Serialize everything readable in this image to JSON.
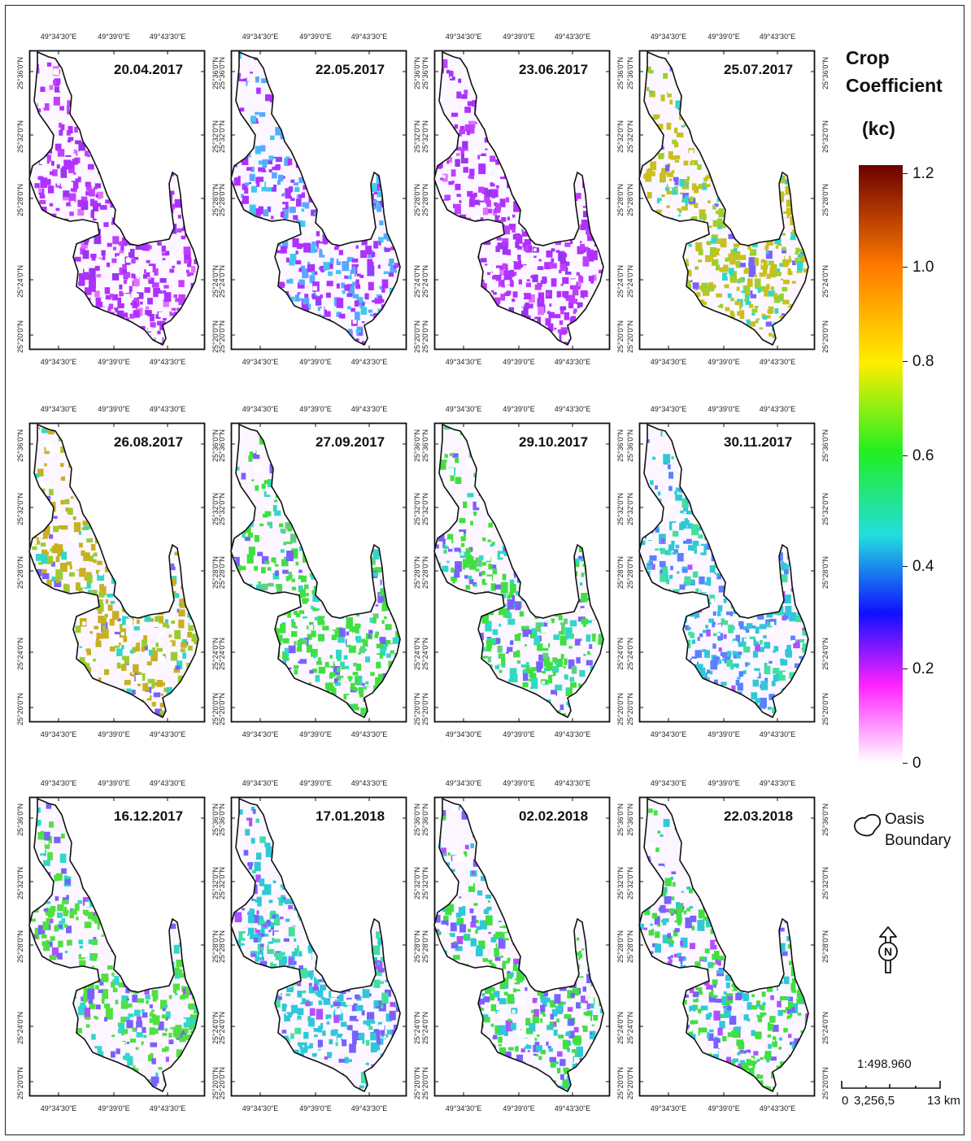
{
  "legend": {
    "title_line1": "Crop",
    "title_line2": "Coefficient",
    "title_line3": "(kc)",
    "ticks": [
      "1.2",
      "1.0",
      "0.8",
      "0.6",
      "0.4",
      "0.2",
      "0"
    ],
    "colors": [
      "#6b0000",
      "#ff7a00",
      "#ffee00",
      "#22ee22",
      "#22dddd",
      "#1010ff",
      "#ff22ff",
      "#ffffff"
    ]
  },
  "boundary_legend": {
    "line1": "Oasis",
    "line2": "Boundary",
    "icon": "oasis-boundary-icon"
  },
  "north_arrow": {
    "letter": "N",
    "icon": "north-arrow-icon"
  },
  "scale": {
    "ratio": "1:498.960",
    "label_0": "0",
    "label_mid": "3,256,5",
    "label_end": "13 km"
  },
  "coordinates": {
    "lon": [
      "49°34'30\"E",
      "49°39'0\"E",
      "49°43'30\"E"
    ],
    "lat": [
      "25°36'0\"N",
      "25°32'0\"N",
      "25°28'0\"N",
      "25°24'0\"N",
      "25°20'0\"N"
    ]
  },
  "panels": [
    {
      "date": "20.04.2017",
      "colors": [
        "#b030ff",
        "#c040ff",
        "#9a35ee",
        "#e070ff"
      ]
    },
    {
      "date": "22.05.2017",
      "colors": [
        "#b030ff",
        "#5aa8ff",
        "#40c8f0",
        "#9040ff"
      ]
    },
    {
      "date": "23.06.2017",
      "colors": [
        "#b030ff",
        "#c040ff",
        "#9a35ee",
        "#e070ff"
      ]
    },
    {
      "date": "25.07.2017",
      "colors": [
        "#c8c020",
        "#9ad030",
        "#30d8c8",
        "#7a60ff"
      ]
    },
    {
      "date": "26.08.2017",
      "colors": [
        "#c8b020",
        "#9acc30",
        "#30d8c8",
        "#7a60ff"
      ]
    },
    {
      "date": "27.09.2017",
      "colors": [
        "#40e040",
        "#30d8c8",
        "#7a60ff",
        "#60d080"
      ]
    },
    {
      "date": "29.10.2017",
      "colors": [
        "#40e040",
        "#30d8c8",
        "#7a60ff",
        "#60d080"
      ]
    },
    {
      "date": "30.11.2017",
      "colors": [
        "#30c8d8",
        "#5a80ff",
        "#40e0a0",
        "#b050ff"
      ]
    },
    {
      "date": "16.12.2017",
      "colors": [
        "#50e040",
        "#30d8c8",
        "#7a60ff",
        "#b050ff"
      ]
    },
    {
      "date": "17.01.2018",
      "colors": [
        "#30c8d8",
        "#7a60ff",
        "#40e0a0",
        "#b050ff"
      ]
    },
    {
      "date": "02.02.2018",
      "colors": [
        "#40e040",
        "#30c8d8",
        "#7a60ff",
        "#b050ff"
      ]
    },
    {
      "date": "22.03.2018",
      "colors": [
        "#40e040",
        "#30c8d8",
        "#7a60ff",
        "#b050ff"
      ]
    }
  ]
}
